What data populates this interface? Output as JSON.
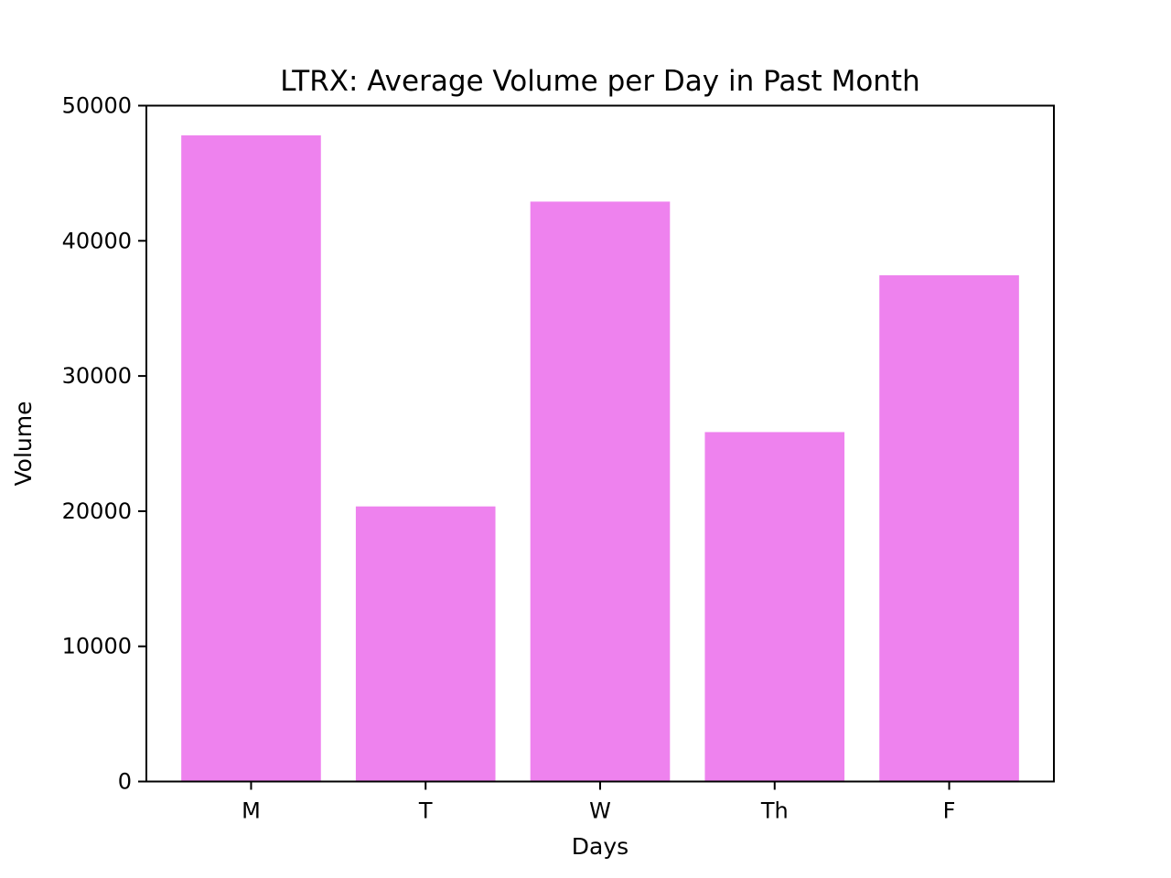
{
  "chart_data": {
    "type": "bar",
    "title": "LTRX: Average Volume per Day in Past Month",
    "xlabel": "Days",
    "ylabel": "Volume",
    "categories": [
      "M",
      "T",
      "W",
      "Th",
      "F"
    ],
    "values": [
      47800,
      20350,
      42900,
      25850,
      37450
    ],
    "ylim": [
      0,
      50000
    ],
    "yticks": [
      0,
      10000,
      20000,
      30000,
      40000,
      50000
    ],
    "bar_color": "#ee82ee",
    "grid": false,
    "legend": false
  }
}
